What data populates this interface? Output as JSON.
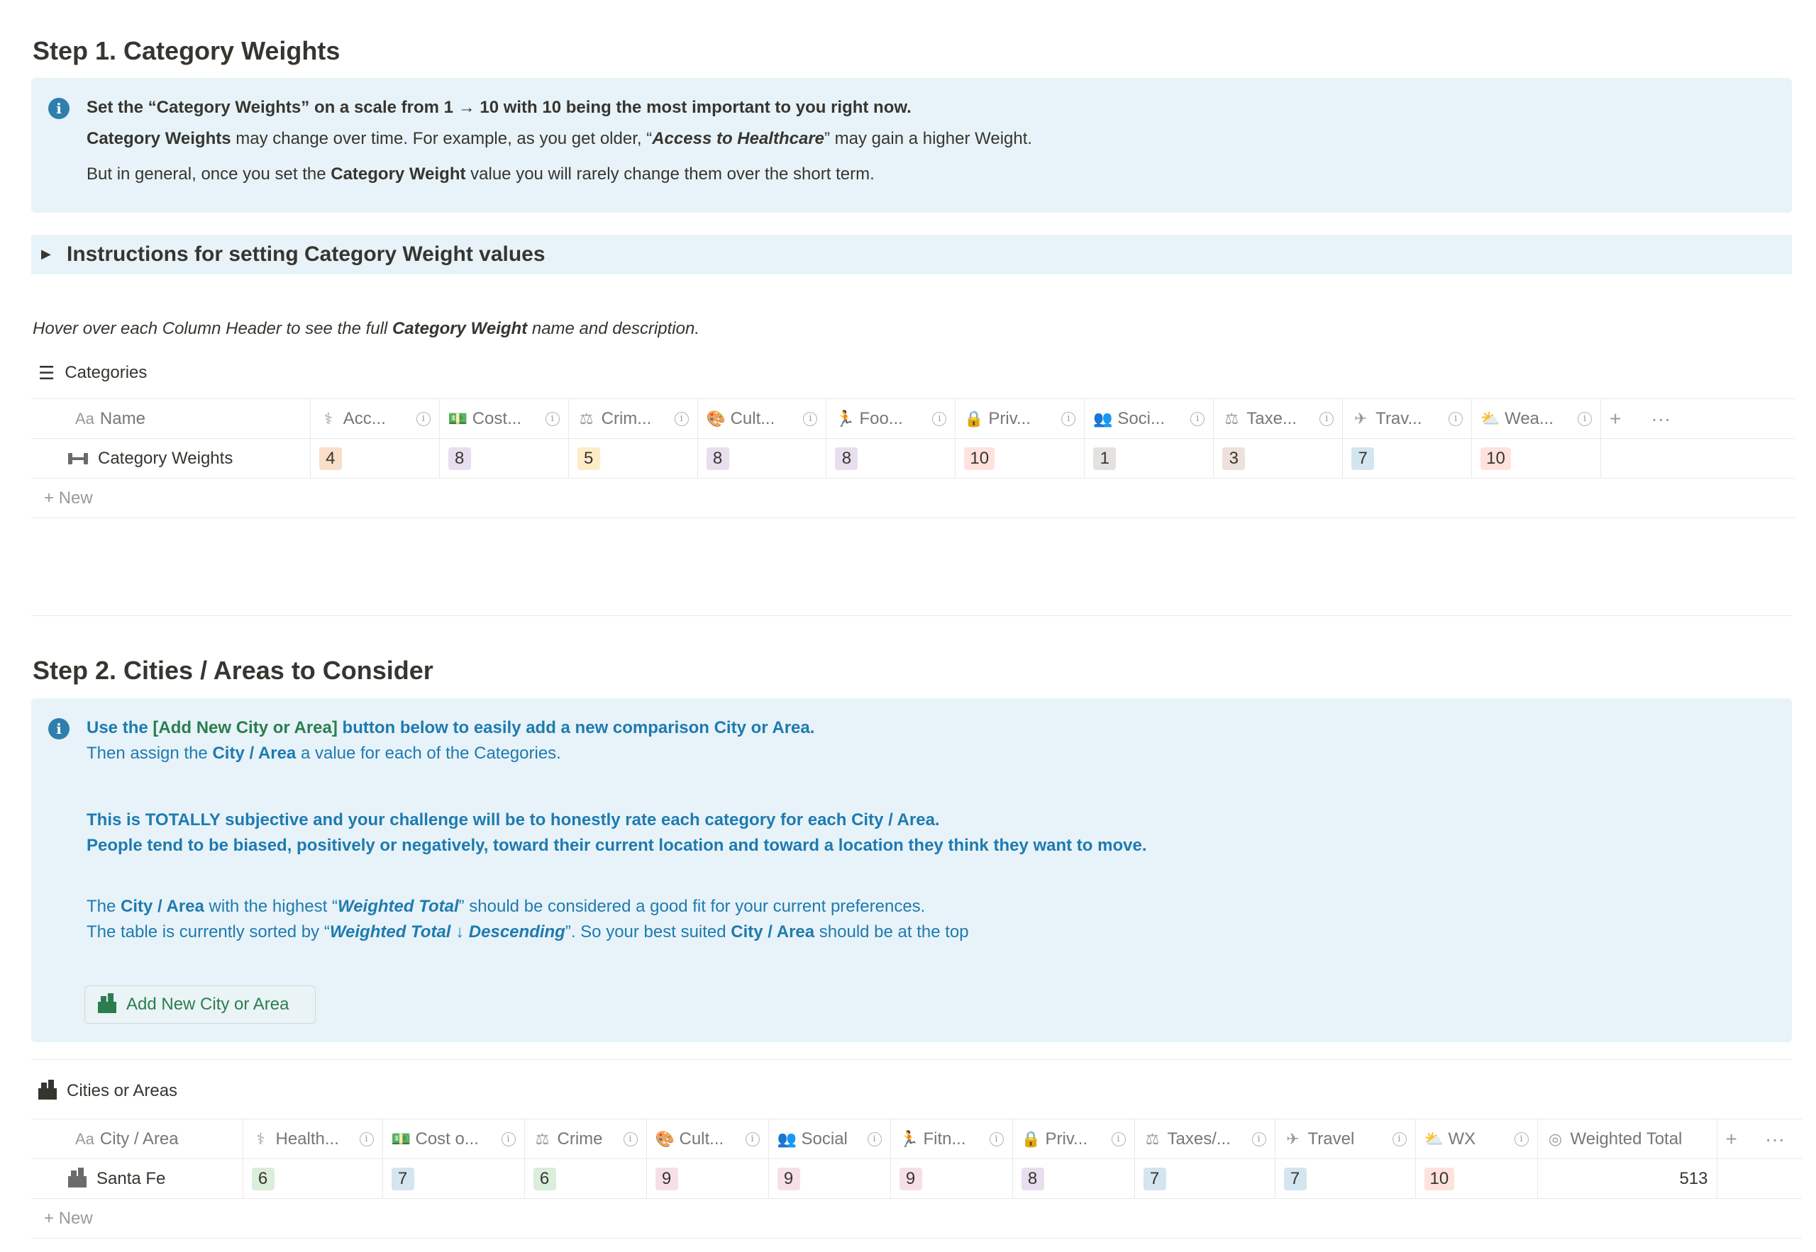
{
  "step1": {
    "title": "Step 1. Category Weights",
    "callout": {
      "line1": "Set the “Category Weights” on a scale from 1 → 10 with 10 being the most important to you right now.",
      "line2_b": "Category Weights",
      "line2_a": " may change over time. For example, as you get older, “",
      "line2_i": "Access to Healthcare",
      "line2_c": "” may gain a higher Weight.",
      "line3_a": "But in general, once you set the ",
      "line3_b": "Category Weight",
      "line3_c": " value you will rarely change them over the short term."
    },
    "toggle_title": "Instructions for setting Category Weight values",
    "hover_note_a": "Hover over each Column Header to see the full ",
    "hover_note_b": "Category Weight",
    "hover_note_c": " name and description.",
    "db_title": "Categories",
    "name_header": "Name",
    "aa": "Aa",
    "headers": [
      {
        "icon": "stethoscope-icon",
        "glyph": "⚕",
        "label": "Acc..."
      },
      {
        "icon": "money-icon",
        "glyph": "💵",
        "label": "Cost..."
      },
      {
        "icon": "gavel-icon",
        "glyph": "⚖",
        "label": "Crim..."
      },
      {
        "icon": "palette-icon",
        "glyph": "🎨",
        "label": "Cult..."
      },
      {
        "icon": "runner-icon",
        "glyph": "🏃",
        "label": "Foo..."
      },
      {
        "icon": "lock-icon",
        "glyph": "🔒",
        "label": "Priv..."
      },
      {
        "icon": "people-icon",
        "glyph": "👥",
        "label": "Soci..."
      },
      {
        "icon": "scales-icon",
        "glyph": "⚖",
        "label": "Taxe..."
      },
      {
        "icon": "airplane-icon",
        "glyph": "✈",
        "label": "Trav..."
      },
      {
        "icon": "weather-icon",
        "glyph": "⛅",
        "label": "Wea..."
      }
    ],
    "row": {
      "name": "Category Weights",
      "values": [
        {
          "v": "4",
          "color": "orange"
        },
        {
          "v": "8",
          "color": "purple"
        },
        {
          "v": "5",
          "color": "yellow"
        },
        {
          "v": "8",
          "color": "purple"
        },
        {
          "v": "8",
          "color": "purple"
        },
        {
          "v": "10",
          "color": "red"
        },
        {
          "v": "1",
          "color": "gray"
        },
        {
          "v": "3",
          "color": "brown"
        },
        {
          "v": "7",
          "color": "blue"
        },
        {
          "v": "10",
          "color": "red"
        }
      ]
    },
    "new_label": "New"
  },
  "step2": {
    "title": "Step 2. Cities / Areas to Consider",
    "callout": {
      "l1_a": "Use the ",
      "l1_b": "[Add New City or Area]",
      "l1_c": " button below to easily add a new comparison City or Area.",
      "l2_a": "Then assign the ",
      "l2_b": "City / Area",
      "l2_c": " a value for each of the Categories.",
      "l3": "This is TOTALLY subjective and your challenge will be to honestly rate each category for each City / Area.",
      "l4": "People tend to be biased, positively or negatively, toward their current location and toward a location they think they want to move.",
      "l5_a": "The ",
      "l5_b": "City / Area",
      "l5_c": " with the highest “",
      "l5_d": "Weighted Total",
      "l5_e": "” should be considered a good fit for your current preferences.",
      "l6_a": "The table is currently sorted by “",
      "l6_b": "Weighted Total ↓ Descending",
      "l6_c": "”. So your best suited ",
      "l6_d": "City / Area",
      "l6_e": " should be at the top"
    },
    "button_label": "Add New City or Area",
    "db_title": "Cities or Areas",
    "name_header": "City / Area",
    "aa": "Aa",
    "headers": [
      {
        "icon": "stethoscope-icon",
        "glyph": "⚕",
        "label": "Health..."
      },
      {
        "icon": "money-icon",
        "glyph": "💵",
        "label": "Cost o..."
      },
      {
        "icon": "gavel-icon",
        "glyph": "⚖",
        "label": "Crime"
      },
      {
        "icon": "palette-icon",
        "glyph": "🎨",
        "label": "Cult..."
      },
      {
        "icon": "people-icon",
        "glyph": "👥",
        "label": "Social"
      },
      {
        "icon": "runner-icon",
        "glyph": "🏃",
        "label": "Fitn..."
      },
      {
        "icon": "lock-icon",
        "glyph": "🔒",
        "label": "Priv..."
      },
      {
        "icon": "scales-icon",
        "glyph": "⚖",
        "label": "Taxes/..."
      },
      {
        "icon": "airplane-icon",
        "glyph": "✈",
        "label": "Travel"
      },
      {
        "icon": "weather-icon",
        "glyph": "⛅",
        "label": "WX"
      }
    ],
    "total_header": {
      "icon": "target-icon",
      "glyph": "◎",
      "label": "Weighted Total"
    },
    "row": {
      "name": "Santa Fe",
      "values": [
        {
          "v": "6",
          "color": "green"
        },
        {
          "v": "7",
          "color": "blue"
        },
        {
          "v": "6",
          "color": "green"
        },
        {
          "v": "9",
          "color": "pink"
        },
        {
          "v": "9",
          "color": "pink"
        },
        {
          "v": "9",
          "color": "pink"
        },
        {
          "v": "8",
          "color": "purple"
        },
        {
          "v": "7",
          "color": "blue"
        },
        {
          "v": "7",
          "color": "blue"
        },
        {
          "v": "10",
          "color": "red"
        }
      ],
      "total": "513"
    },
    "new_label": "New"
  },
  "table_controls": {
    "add": "+",
    "more": "···"
  }
}
